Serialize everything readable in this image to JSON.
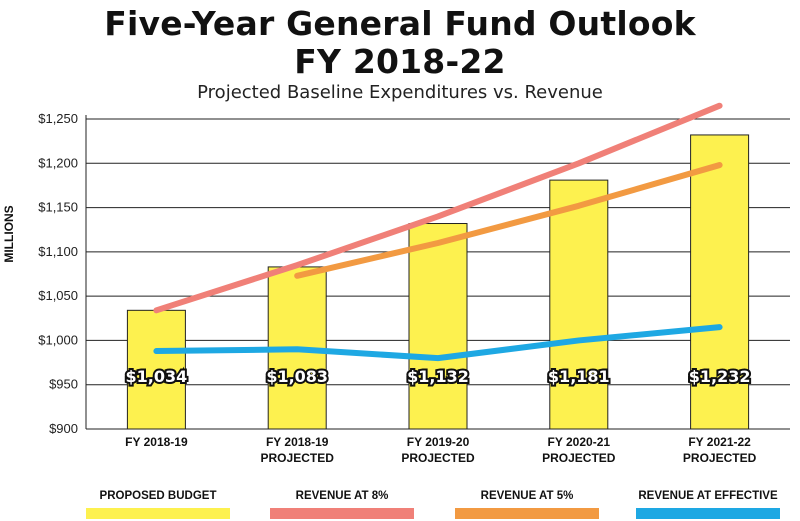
{
  "chart_data": {
    "type": "bar",
    "title_line1": "Five-Year General Fund Outlook",
    "title_line2": "FY 2018-22",
    "subtitle": "Projected Baseline Expenditures vs. Revenue",
    "ylabel": "MILLIONS",
    "xlabel": "",
    "ylim": [
      900,
      1250
    ],
    "yticks": [
      900,
      950,
      1000,
      1050,
      1100,
      1150,
      1200,
      1250
    ],
    "ytick_labels": [
      "$900",
      "$950",
      "$1,000",
      "$1,050",
      "$1,100",
      "$1,150",
      "$1,200",
      "$1,250"
    ],
    "categories": [
      [
        "FY 2018-19"
      ],
      [
        "FY 2018-19",
        "PROJECTED"
      ],
      [
        "FY 2019-20",
        "PROJECTED"
      ],
      [
        "FY 2020-21",
        "PROJECTED"
      ],
      [
        "FY 2021-22",
        "PROJECTED"
      ]
    ],
    "grid": true,
    "legend_position": "bottom",
    "series": [
      {
        "name": "PROPOSED BUDGET",
        "kind": "bar",
        "color": "#fdf14f",
        "values": [
          1034,
          1083,
          1132,
          1181,
          1232
        ],
        "labels": [
          "$1,034",
          "$1,083",
          "$1,132",
          "$1,181",
          "$1,232"
        ]
      },
      {
        "name": "REVENUE AT 8%",
        "kind": "line",
        "color": "#f08078",
        "values": [
          1034,
          1085,
          1140,
          1200,
          1265
        ]
      },
      {
        "name": "REVENUE AT 5%",
        "kind": "line",
        "color": "#f29a42",
        "values": [
          null,
          1073,
          1110,
          1152,
          1198
        ]
      },
      {
        "name": "REVENUE AT EFFECTIVE",
        "kind": "line",
        "color": "#1ea8e3",
        "values": [
          988,
          990,
          980,
          1000,
          1015
        ]
      }
    ]
  }
}
